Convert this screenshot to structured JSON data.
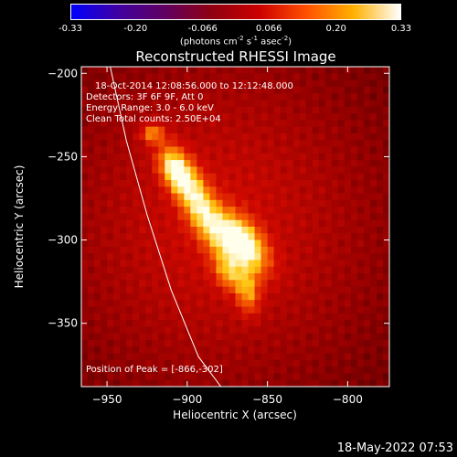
{
  "colorbar": {
    "ticks": [
      "-0.33",
      "-0.20",
      "-0.066",
      "0.066",
      "0.20",
      "0.33"
    ],
    "tick_values": [
      -0.33,
      -0.2,
      -0.066,
      0.066,
      0.2,
      0.33
    ],
    "range": [
      -0.33,
      0.33
    ],
    "units_prefix": "(photons cm",
    "units_exp1": "-2",
    "units_mid": " s",
    "units_exp2": "-1",
    "units_mid2": " asec",
    "units_exp3": "-2",
    "units_suffix": ")",
    "colors": [
      "#0000ff",
      "#4000a0",
      "#600060",
      "#900010",
      "#cc0000",
      "#ff5000",
      "#ffb000",
      "#ffffff"
    ]
  },
  "chart_data": {
    "type": "heatmap",
    "title": "Reconstructed RHESSI Image",
    "xlabel": "Heliocentric X (arcsec)",
    "ylabel": "Heliocentric Y (arcsec)",
    "xlim": [
      -966,
      -774
    ],
    "ylim": [
      -388,
      -196
    ],
    "x_ticks": [
      -950,
      -900,
      -850,
      -800
    ],
    "y_ticks": [
      -200,
      -250,
      -300,
      -350
    ],
    "x_tick_labels": [
      "−950",
      "−900",
      "−850",
      "−800"
    ],
    "y_tick_labels": [
      "−200",
      "−250",
      "−300",
      "−350"
    ],
    "annotations": [
      "18-Oct-2014 12:08:56.000 to 12:12:48.000",
      "Detectors: 3F 6F 9F, Att 0",
      "Energy Range: 3.0 - 6.0 keV",
      "Clean     Total counts: 2.50E+04"
    ],
    "peak_label": "Position of Peak = [-866,-302]",
    "peak": [
      -866,
      -302
    ],
    "sources": [
      {
        "x": -866,
        "y": -302,
        "sigma_major": 14,
        "sigma_minor": 8,
        "angle_deg": -50,
        "amp": 1.0
      },
      {
        "x": -893,
        "y": -278,
        "sigma_major": 22,
        "sigma_minor": 7,
        "angle_deg": -62,
        "amp": 0.75
      },
      {
        "x": -908,
        "y": -258,
        "sigma_major": 10,
        "sigma_minor": 6,
        "angle_deg": -60,
        "amp": 0.65
      },
      {
        "x": -922,
        "y": -236,
        "sigma_major": 5,
        "sigma_minor": 4,
        "angle_deg": 0,
        "amp": 0.55
      },
      {
        "x": -862,
        "y": -332,
        "sigma_major": 9,
        "sigma_minor": 5,
        "angle_deg": -85,
        "amp": 0.5
      },
      {
        "x": -874,
        "y": -320,
        "sigma_major": 8,
        "sigma_minor": 6,
        "angle_deg": -60,
        "amp": 0.45
      }
    ],
    "limb_curve": [
      [
        -948,
        -196
      ],
      [
        -938,
        -240
      ],
      [
        -925,
        -285
      ],
      [
        -910,
        -330
      ],
      [
        -893,
        -370
      ],
      [
        -879,
        -388
      ]
    ]
  },
  "footer": "18-May-2022 07:53"
}
